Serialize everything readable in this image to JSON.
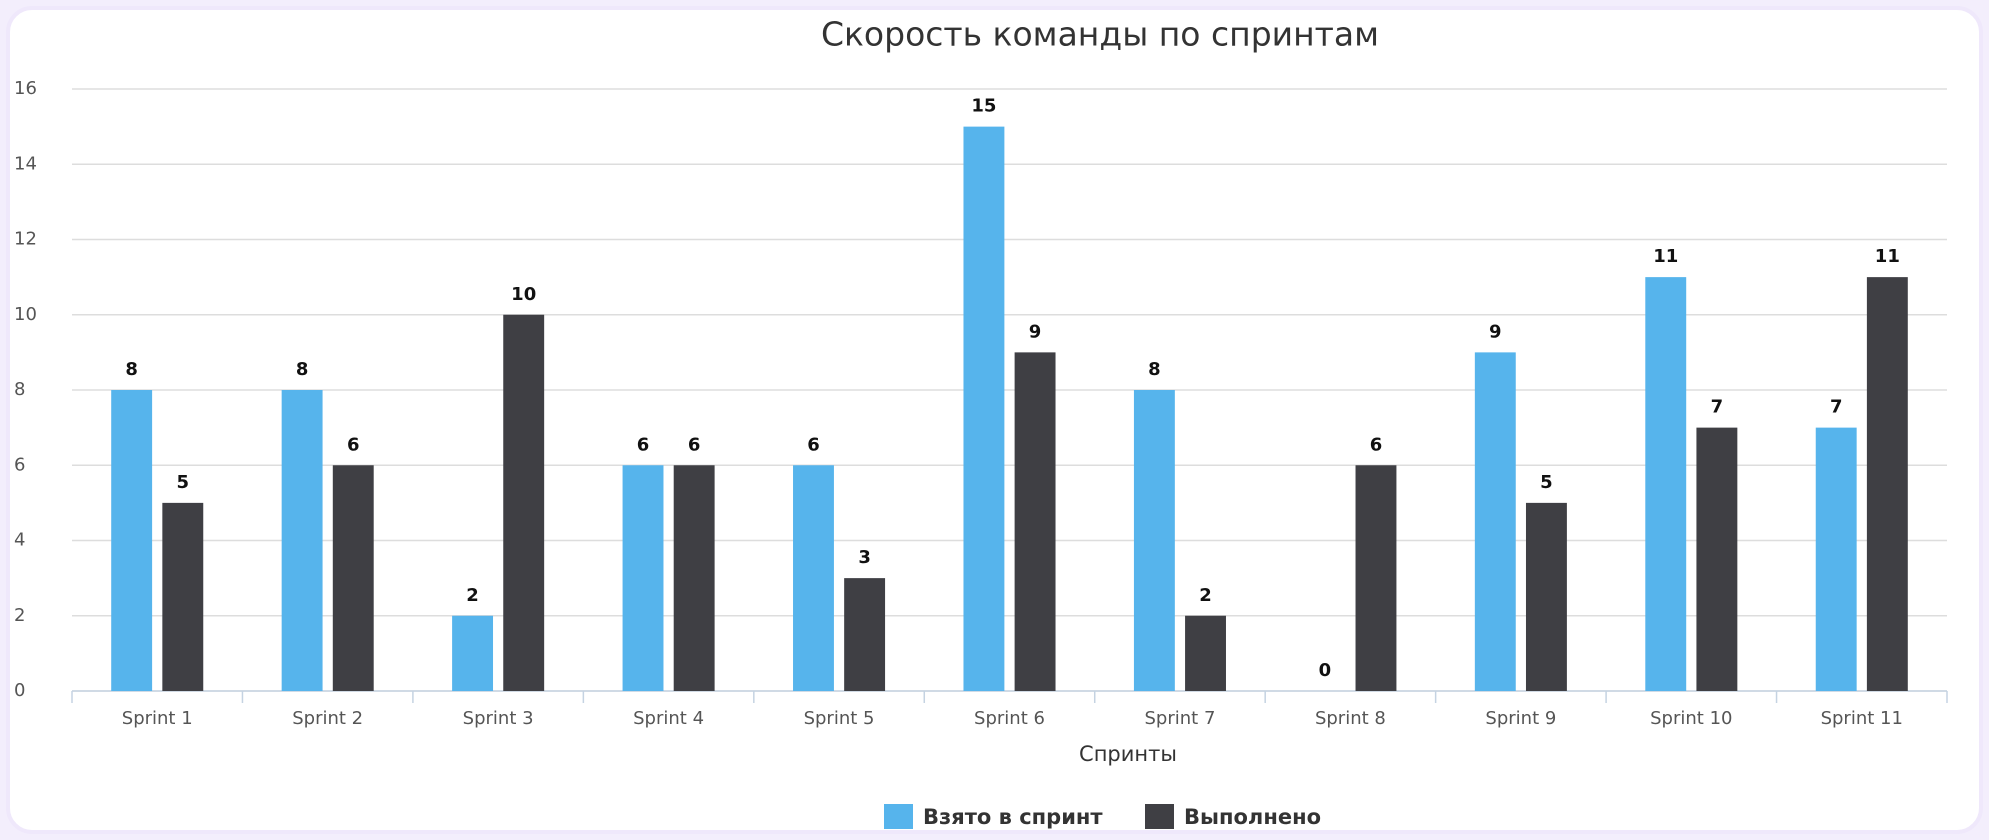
{
  "chart_data": {
    "type": "bar",
    "title": "Скорость команды по спринтам",
    "x_label": "Спринты",
    "categories": [
      "Sprint 1",
      "Sprint 2",
      "Sprint 3",
      "Sprint 4",
      "Sprint 5",
      "Sprint 6",
      "Sprint 7",
      "Sprint 8",
      "Sprint 9",
      "Sprint 10",
      "Sprint 11"
    ],
    "series": [
      {
        "name": "Взято в спринт",
        "color": "#56b4ec",
        "values": [
          8,
          8,
          2,
          6,
          6,
          15,
          8,
          0,
          9,
          11,
          7
        ]
      },
      {
        "name": "Выполнено",
        "color": "#3f3f44",
        "values": [
          5,
          6,
          10,
          6,
          3,
          9,
          2,
          6,
          5,
          7,
          11
        ]
      }
    ],
    "ylim": [
      0,
      16
    ],
    "yticks": [
      0,
      2,
      4,
      6,
      8,
      10,
      12,
      14,
      16
    ],
    "grid": true,
    "legend": "bottom"
  }
}
